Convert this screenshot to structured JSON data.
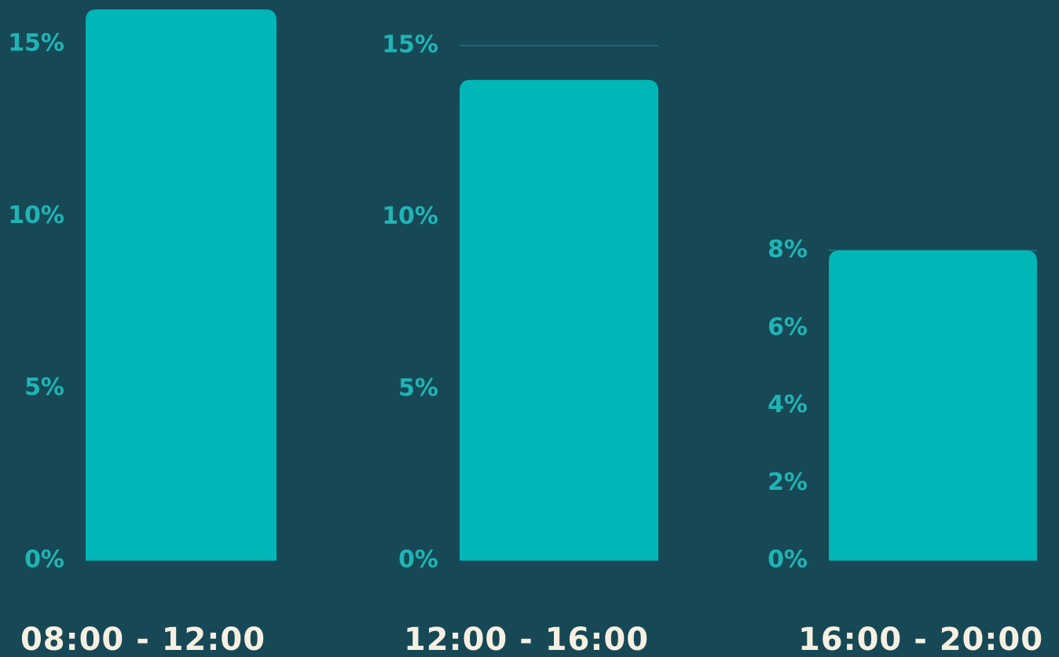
{
  "chart_data": [
    {
      "type": "bar",
      "categories": [
        "08:00 - 12:00"
      ],
      "values": [
        16
      ],
      "color": "#00b6b6",
      "ylim": [
        0,
        16
      ],
      "yticks": [
        {
          "value": 0,
          "label": "0%"
        },
        {
          "value": 5,
          "label": "5%"
        },
        {
          "value": 10,
          "label": "10%"
        },
        {
          "value": 15,
          "label": "15%"
        }
      ],
      "grid": true
    },
    {
      "type": "bar",
      "categories": [
        "12:00 - 16:00"
      ],
      "values": [
        14
      ],
      "color": "#00b6b6",
      "ylim": [
        0,
        15
      ],
      "yticks": [
        {
          "value": 0,
          "label": "0%"
        },
        {
          "value": 5,
          "label": "5%"
        },
        {
          "value": 10,
          "label": "10%"
        },
        {
          "value": 15,
          "label": "15%"
        }
      ],
      "grid": true
    },
    {
      "type": "bar",
      "categories": [
        "16:00 - 20:00"
      ],
      "values": [
        8
      ],
      "color": "#00b6b6",
      "ylim": [
        0,
        8
      ],
      "yticks": [
        {
          "value": 0,
          "label": "0%"
        },
        {
          "value": 2,
          "label": "2%"
        },
        {
          "value": 4,
          "label": "4%"
        },
        {
          "value": 6,
          "label": "6%"
        },
        {
          "value": 8,
          "label": "8%"
        }
      ],
      "grid": true
    }
  ]
}
